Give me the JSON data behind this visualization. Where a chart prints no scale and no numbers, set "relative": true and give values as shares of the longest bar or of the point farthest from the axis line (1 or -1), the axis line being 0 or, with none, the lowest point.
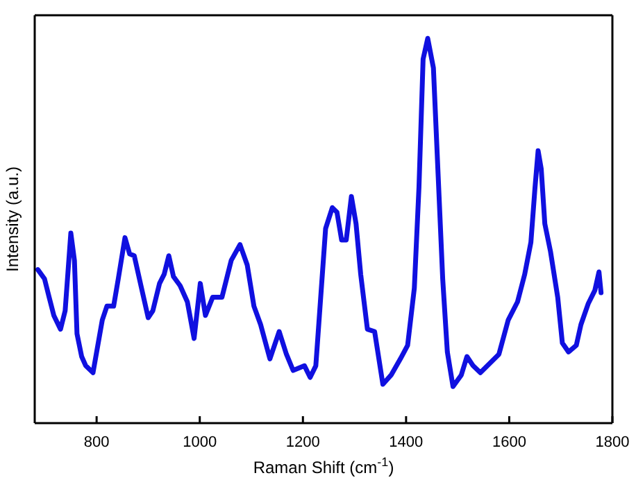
{
  "chart_data": {
    "type": "line",
    "relative": true,
    "xlabel": "Raman Shift (cm$^{-1}$)",
    "ylabel": "Intensity (a.u.)",
    "xlim": [
      680,
      1800
    ],
    "xticks": [
      800,
      1000,
      1200,
      1400,
      1600,
      1800
    ],
    "tick_labels": "x",
    "marker": "none",
    "line_style": "solid",
    "series": [
      {
        "color": "#1010e0",
        "x": [
          686,
          699,
          708,
          717,
          730,
          739,
          750,
          757,
          762,
          771,
          779,
          793,
          811,
          820,
          833,
          842,
          855,
          864,
          873,
          887,
          900,
          909,
          922,
          931,
          940,
          949,
          962,
          976,
          989,
          1001,
          1011,
          1025,
          1043,
          1061,
          1078,
          1092,
          1105,
          1118,
          1136,
          1154,
          1168,
          1181,
          1203,
          1214,
          1225,
          1244,
          1257,
          1266,
          1275,
          1284,
          1294,
          1303,
          1312,
          1325,
          1339,
          1355,
          1371,
          1389,
          1403,
          1416,
          1425,
          1433,
          1442,
          1453,
          1462,
          1471,
          1480,
          1491,
          1507,
          1518,
          1530,
          1544,
          1562,
          1580,
          1598,
          1616,
          1630,
          1642,
          1650,
          1656,
          1662,
          1669,
          1680,
          1694,
          1703,
          1715,
          1730,
          1739,
          1753,
          1766,
          1774,
          1778
        ],
        "values": [
          0.399,
          0.375,
          0.327,
          0.28,
          0.244,
          0.292,
          0.494,
          0.423,
          0.232,
          0.173,
          0.149,
          0.131,
          0.268,
          0.304,
          0.304,
          0.375,
          0.482,
          0.44,
          0.435,
          0.351,
          0.274,
          0.292,
          0.363,
          0.387,
          0.435,
          0.381,
          0.357,
          0.315,
          0.22,
          0.363,
          0.28,
          0.327,
          0.327,
          0.423,
          0.464,
          0.411,
          0.304,
          0.256,
          0.167,
          0.238,
          0.179,
          0.137,
          0.149,
          0.119,
          0.149,
          0.506,
          0.56,
          0.548,
          0.476,
          0.476,
          0.589,
          0.518,
          0.387,
          0.244,
          0.238,
          0.101,
          0.125,
          0.167,
          0.202,
          0.351,
          0.613,
          0.946,
          1.0,
          0.923,
          0.649,
          0.375,
          0.185,
          0.095,
          0.125,
          0.173,
          0.149,
          0.131,
          0.155,
          0.179,
          0.268,
          0.315,
          0.387,
          0.47,
          0.613,
          0.708,
          0.661,
          0.518,
          0.446,
          0.327,
          0.208,
          0.185,
          0.202,
          0.256,
          0.31,
          0.345,
          0.393,
          0.339
        ]
      }
    ]
  }
}
